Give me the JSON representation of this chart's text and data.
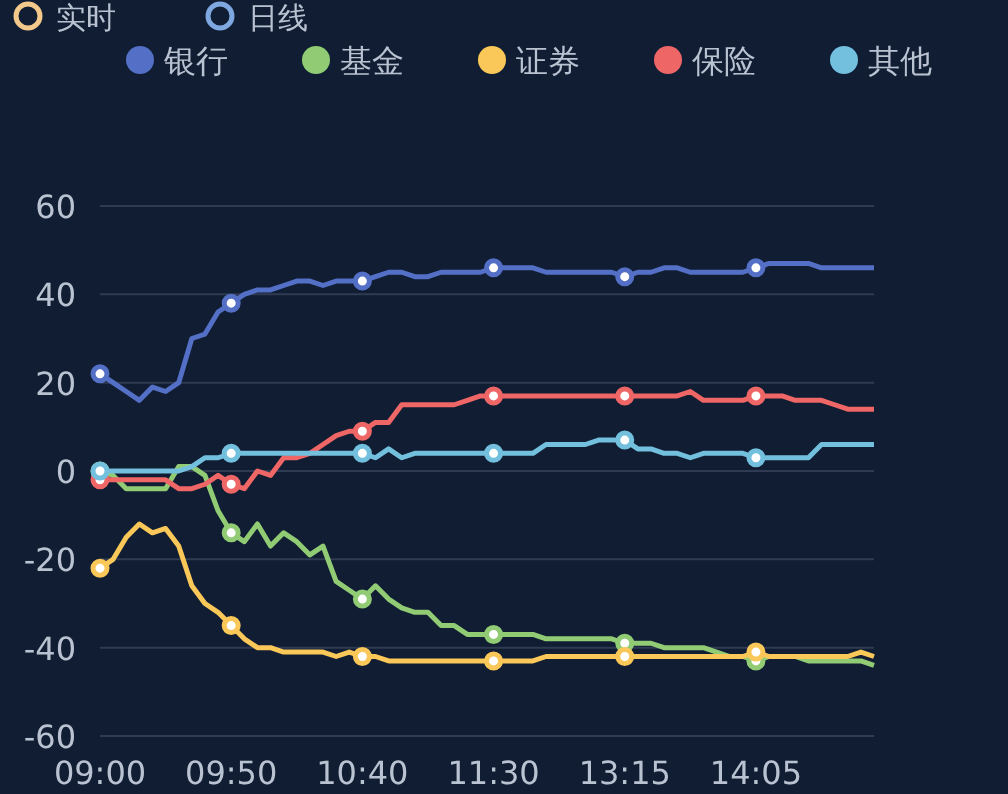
{
  "chart_data": {
    "type": "line",
    "annotations": [
      "实时",
      "日线"
    ],
    "categories": [
      "09:00",
      null,
      null,
      null,
      null,
      null,
      null,
      null,
      null,
      null,
      "09:50",
      null,
      null,
      null,
      null,
      null,
      null,
      null,
      null,
      null,
      "10:40",
      null,
      null,
      null,
      null,
      null,
      null,
      null,
      null,
      null,
      "11:30",
      null,
      null,
      null,
      null,
      null,
      null,
      null,
      null,
      null,
      "13:15",
      null,
      null,
      null,
      null,
      null,
      null,
      null,
      null,
      null,
      "14:05",
      null,
      null,
      null,
      null,
      null,
      null,
      null,
      null,
      null
    ],
    "series": [
      {
        "name": "银行",
        "color": "#5470c6",
        "values": [
          22,
          20,
          18,
          16,
          19,
          18,
          20,
          30,
          31,
          36,
          38,
          40,
          41,
          41,
          42,
          43,
          43,
          42,
          43,
          43,
          43,
          44,
          45,
          45,
          44,
          44,
          45,
          45,
          45,
          45,
          46,
          46,
          46,
          46,
          45,
          45,
          45,
          45,
          45,
          45,
          44,
          45,
          45,
          46,
          46,
          45,
          45,
          45,
          45,
          45,
          46,
          47,
          47,
          47,
          47,
          46,
          46,
          46,
          46,
          46
        ]
      },
      {
        "name": "基金",
        "color": "#91cc75",
        "values": [
          0,
          -1,
          -4,
          -4,
          -4,
          -4,
          1,
          1,
          -1,
          -9,
          -14,
          -16,
          -12,
          -17,
          -14,
          -16,
          -19,
          -17,
          -25,
          -27,
          -29,
          -26,
          -29,
          -31,
          -32,
          -32,
          -35,
          -35,
          -37,
          -37,
          -37,
          -37,
          -37,
          -37,
          -38,
          -38,
          -38,
          -38,
          -38,
          -38,
          -39,
          -39,
          -39,
          -40,
          -40,
          -40,
          -40,
          -41,
          -42,
          -42,
          -43,
          -42,
          -42,
          -42,
          -43,
          -43,
          -43,
          -43,
          -43,
          -44
        ]
      },
      {
        "name": "证券",
        "color": "#fac858",
        "values": [
          -22,
          -20,
          -15,
          -12,
          -14,
          -13,
          -17,
          -26,
          -30,
          -32,
          -35,
          -38,
          -40,
          -40,
          -41,
          -41,
          -41,
          -41,
          -42,
          -41,
          -42,
          -42,
          -43,
          -43,
          -43,
          -43,
          -43,
          -43,
          -43,
          -43,
          -43,
          -43,
          -43,
          -43,
          -42,
          -42,
          -42,
          -42,
          -42,
          -42,
          -42,
          -42,
          -42,
          -42,
          -42,
          -42,
          -42,
          -42,
          -42,
          -42,
          -41,
          -42,
          -42,
          -42,
          -42,
          -42,
          -42,
          -42,
          -41,
          -42
        ]
      },
      {
        "name": "保险",
        "color": "#ee6666",
        "values": [
          -2,
          -2,
          -2,
          -2,
          -2,
          -2,
          -4,
          -4,
          -3,
          -1,
          -3,
          -4,
          0,
          -1,
          3,
          3,
          4,
          6,
          8,
          9,
          9,
          11,
          11,
          15,
          15,
          15,
          15,
          15,
          16,
          17,
          17,
          17,
          17,
          17,
          17,
          17,
          17,
          17,
          17,
          17,
          17,
          17,
          17,
          17,
          17,
          18,
          16,
          16,
          16,
          16,
          17,
          17,
          17,
          16,
          16,
          16,
          15,
          14,
          14,
          14
        ]
      },
      {
        "name": "其他",
        "color": "#73c0de",
        "values": [
          0,
          0,
          0,
          0,
          0,
          0,
          0,
          1,
          3,
          3,
          4,
          4,
          4,
          4,
          4,
          4,
          4,
          4,
          4,
          4,
          4,
          3,
          5,
          3,
          4,
          4,
          4,
          4,
          4,
          4,
          4,
          4,
          4,
          4,
          6,
          6,
          6,
          6,
          7,
          7,
          7,
          5,
          5,
          4,
          4,
          3,
          4,
          4,
          4,
          4,
          3,
          3,
          3,
          3,
          3,
          6,
          6,
          6,
          6,
          6
        ]
      }
    ],
    "ylim": [
      -60,
      60
    ],
    "yticks": [
      -60,
      -40,
      -20,
      0,
      20,
      40,
      60
    ],
    "grid": "y",
    "legend": "top",
    "line_style": "solid"
  }
}
